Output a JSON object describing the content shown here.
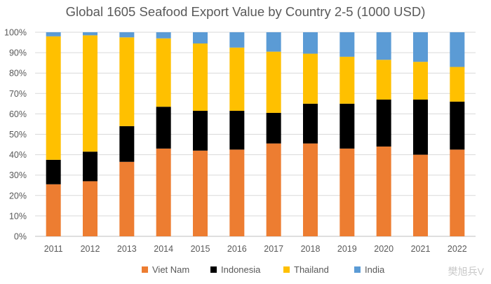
{
  "chart_data": {
    "type": "bar",
    "stacked": true,
    "normalized": true,
    "title": "Global 1605 Seafood Export Value by Country 2-5 (1000 USD)",
    "categories": [
      "2011",
      "2012",
      "2013",
      "2014",
      "2015",
      "2016",
      "2017",
      "2018",
      "2019",
      "2020",
      "2021",
      "2022"
    ],
    "y_ticks": [
      "0%",
      "10%",
      "20%",
      "30%",
      "40%",
      "50%",
      "60%",
      "70%",
      "80%",
      "90%",
      "100%"
    ],
    "ylim": [
      0,
      100
    ],
    "series": [
      {
        "name": "Viet Nam",
        "color": "#ED7D31",
        "values": [
          25.5,
          27,
          36.5,
          43,
          42,
          42.5,
          45.5,
          45.5,
          43,
          44,
          40,
          42.5
        ]
      },
      {
        "name": "Indonesia",
        "color": "#000000",
        "values": [
          12,
          14.5,
          17.5,
          20.5,
          19.5,
          19,
          15,
          19.5,
          22,
          23,
          27,
          23.5
        ]
      },
      {
        "name": "Thailand",
        "color": "#FFC000",
        "values": [
          60.5,
          57,
          43.5,
          33.5,
          33,
          31,
          30,
          24.5,
          23,
          19.5,
          18.5,
          17
        ]
      },
      {
        "name": "India",
        "color": "#5B9BD5",
        "values": [
          2,
          1.5,
          2.5,
          3,
          5.5,
          7.5,
          9.5,
          10.5,
          12,
          13.5,
          14.5,
          17
        ]
      }
    ],
    "legend_position": "bottom",
    "grid": true
  },
  "watermark": "樊旭兵V"
}
